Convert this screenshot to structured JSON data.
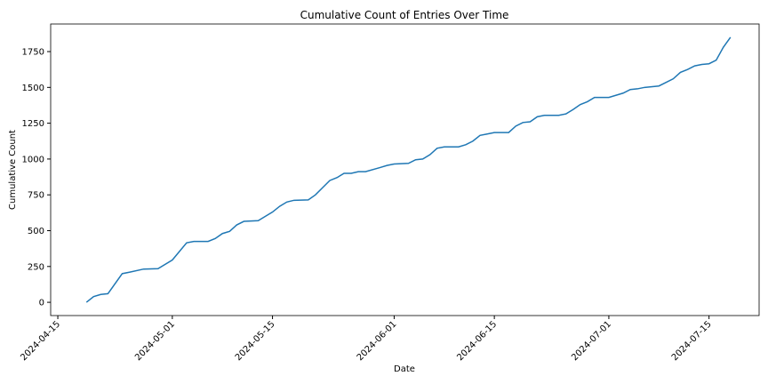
{
  "chart_data": {
    "type": "line",
    "title": "Cumulative Count of Entries Over Time",
    "x_label": "Date",
    "y_label": "Cumulative Count",
    "x": [
      "2024-04-19",
      "2024-04-20",
      "2024-04-21",
      "2024-04-22",
      "2024-04-24",
      "2024-04-25",
      "2024-04-27",
      "2024-04-29",
      "2024-05-01",
      "2024-05-03",
      "2024-05-04",
      "2024-05-06",
      "2024-05-07",
      "2024-05-08",
      "2024-05-09",
      "2024-05-10",
      "2024-05-11",
      "2024-05-13",
      "2024-05-14",
      "2024-05-15",
      "2024-05-16",
      "2024-05-17",
      "2024-05-18",
      "2024-05-20",
      "2024-05-21",
      "2024-05-22",
      "2024-05-23",
      "2024-05-24",
      "2024-05-25",
      "2024-05-26",
      "2024-05-27",
      "2024-05-28",
      "2024-05-30",
      "2024-05-31",
      "2024-06-01",
      "2024-06-03",
      "2024-06-04",
      "2024-06-05",
      "2024-06-06",
      "2024-06-07",
      "2024-06-08",
      "2024-06-10",
      "2024-06-11",
      "2024-06-12",
      "2024-06-13",
      "2024-06-14",
      "2024-06-15",
      "2024-06-17",
      "2024-06-18",
      "2024-06-19",
      "2024-06-20",
      "2024-06-21",
      "2024-06-22",
      "2024-06-24",
      "2024-06-25",
      "2024-06-26",
      "2024-06-27",
      "2024-06-28",
      "2024-06-29",
      "2024-07-01",
      "2024-07-03",
      "2024-07-04",
      "2024-07-05",
      "2024-07-06",
      "2024-07-08",
      "2024-07-10",
      "2024-07-11",
      "2024-07-12",
      "2024-07-13",
      "2024-07-14",
      "2024-07-15",
      "2024-07-16",
      "2024-07-17",
      "2024-07-18"
    ],
    "series": [
      {
        "color": "#1f77b4",
        "values": [
          0,
          40,
          55,
          60,
          200,
          210,
          232,
          235,
          295,
          415,
          425,
          425,
          445,
          480,
          495,
          540,
          565,
          570,
          600,
          630,
          670,
          700,
          712,
          715,
          750,
          800,
          850,
          870,
          900,
          900,
          912,
          912,
          940,
          955,
          965,
          970,
          995,
          1000,
          1030,
          1075,
          1085,
          1085,
          1100,
          1125,
          1165,
          1175,
          1185,
          1185,
          1230,
          1255,
          1260,
          1295,
          1305,
          1305,
          1315,
          1345,
          1380,
          1400,
          1430,
          1430,
          1460,
          1485,
          1490,
          1500,
          1510,
          1560,
          1605,
          1625,
          1650,
          1660,
          1665,
          1690,
          1780,
          1850
        ]
      }
    ],
    "xlim": [
      "2024-04-14",
      "2024-07-22"
    ],
    "xticks": [
      "2024-04-15",
      "2024-05-01",
      "2024-05-15",
      "2024-06-01",
      "2024-06-15",
      "2024-07-01",
      "2024-07-15"
    ],
    "ylim": [
      -92.5,
      1942.5
    ],
    "yticks": [
      0,
      250,
      500,
      750,
      1000,
      1250,
      1500,
      1750
    ]
  }
}
